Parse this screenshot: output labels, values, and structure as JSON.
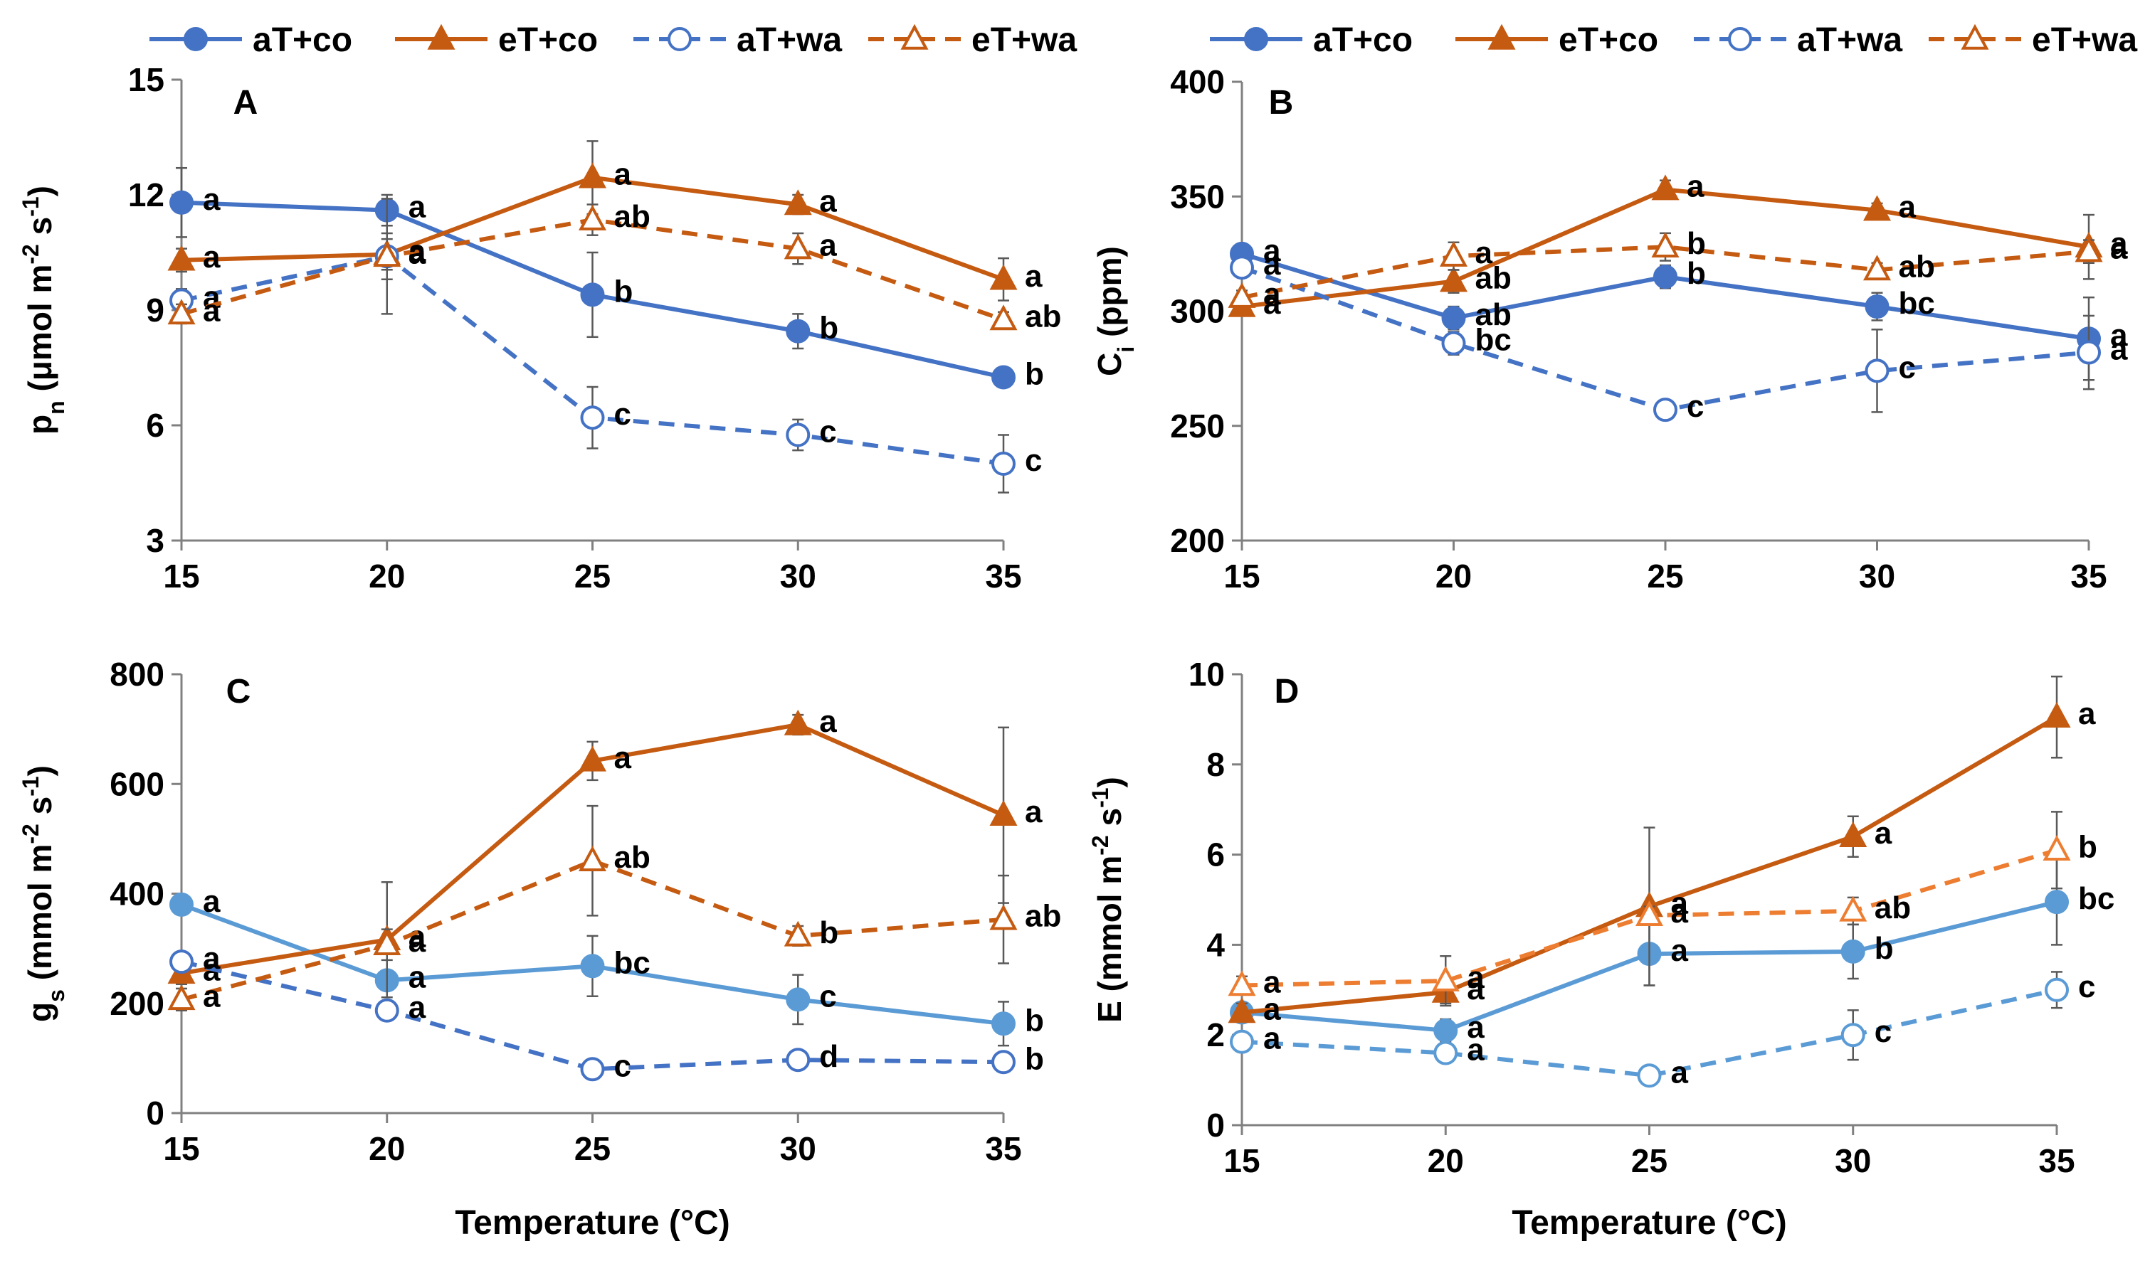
{
  "colors": {
    "blue": "#4472C4",
    "blue_light": "#5B9BD5",
    "orange": "#C55A11",
    "orange_light": "#ED7D31",
    "axis": "#808080",
    "errorbar": "#595959"
  },
  "legend": [
    {
      "label": "aT+co",
      "color_key": "blue",
      "dash": false,
      "marker": "circle",
      "filled": true
    },
    {
      "label": "eT+co",
      "color_key": "orange",
      "dash": false,
      "marker": "triangle",
      "filled": true
    },
    {
      "label": "aT+wa",
      "color_key": "blue",
      "dash": true,
      "marker": "circle",
      "filled": false
    },
    {
      "label": "eT+wa",
      "color_key": "orange",
      "dash": true,
      "marker": "triangle",
      "filled": false
    }
  ],
  "chart_data": [
    {
      "type": "line",
      "panel_letter": "A",
      "title": "",
      "xlabel": "",
      "ylabel": {
        "base": "p",
        "sub": "n",
        "rest": " (μmol m",
        "sup1": "-2",
        "mid": " s",
        "sup2": "-1",
        "end": ")"
      },
      "x": [
        15,
        20,
        25,
        30,
        35
      ],
      "xlim": [
        15,
        35
      ],
      "ylim": [
        3,
        15
      ],
      "yticks": [
        3,
        6,
        9,
        12,
        15
      ],
      "xticks": [
        15,
        20,
        25,
        30,
        35
      ],
      "series": [
        {
          "name": "aT+co",
          "color_key": "blue",
          "dash": false,
          "marker": "circle",
          "filled": true,
          "values": [
            11.8,
            11.6,
            9.4,
            8.45,
            7.25
          ],
          "err": [
            0.9,
            0.4,
            1.1,
            0.45,
            0.25
          ],
          "letters": [
            "a",
            "a",
            "b",
            "b",
            "b"
          ]
        },
        {
          "name": "eT+co",
          "color_key": "orange",
          "dash": false,
          "marker": "triangle",
          "filled": true,
          "values": [
            10.3,
            10.45,
            12.45,
            11.75,
            9.8
          ],
          "err": [
            0.3,
            0.4,
            0.95,
            0.25,
            0.55
          ],
          "letters": [
            "a",
            "a",
            "a",
            "a",
            "a"
          ]
        },
        {
          "name": "aT+wa",
          "color_key": "blue",
          "dash": true,
          "marker": "circle",
          "filled": false,
          "values": [
            9.25,
            10.4,
            6.2,
            5.75,
            5.0
          ],
          "err": [
            0.3,
            1.5,
            0.8,
            0.4,
            0.75
          ],
          "letters": [
            "a",
            "a",
            "c",
            "c",
            "c"
          ]
        },
        {
          "name": "eT+wa",
          "color_key": "orange",
          "dash": true,
          "marker": "triangle",
          "filled": false,
          "values": [
            8.9,
            10.4,
            11.35,
            10.6,
            8.75
          ],
          "err": [
            0.25,
            0.6,
            0.4,
            0.4,
            0.2
          ],
          "letters": [
            "a",
            "a",
            "ab",
            "a",
            "ab"
          ]
        }
      ]
    },
    {
      "type": "line",
      "panel_letter": "B",
      "title": "",
      "xlabel": "",
      "ylabel": {
        "base": "C",
        "sub": "i",
        "rest": " (ppm)",
        "sup1": "",
        "mid": "",
        "sup2": "",
        "end": ""
      },
      "x": [
        15,
        20,
        25,
        30,
        35
      ],
      "xlim": [
        15,
        35
      ],
      "ylim": [
        200,
        400
      ],
      "yticks": [
        200,
        250,
        300,
        350,
        400
      ],
      "xticks": [
        15,
        20,
        25,
        30,
        35
      ],
      "series": [
        {
          "name": "aT+co",
          "color_key": "blue",
          "dash": false,
          "marker": "circle",
          "filled": true,
          "values": [
            325,
            297,
            315,
            302,
            288
          ],
          "err": [
            4,
            5,
            5,
            6,
            18
          ],
          "letters": [
            "a",
            "ab",
            "b",
            "bc",
            "a"
          ]
        },
        {
          "name": "eT+co",
          "color_key": "orange",
          "dash": false,
          "marker": "triangle",
          "filled": true,
          "values": [
            302,
            313,
            353,
            344,
            328
          ],
          "err": [
            3,
            5,
            4,
            3,
            14
          ],
          "letters": [
            "a",
            "ab",
            "a",
            "a",
            "a"
          ]
        },
        {
          "name": "aT+wa",
          "color_key": "blue",
          "dash": true,
          "marker": "circle",
          "filled": false,
          "values": [
            319,
            286,
            257,
            274,
            282
          ],
          "err": [
            4,
            5,
            3,
            18,
            16
          ],
          "letters": [
            "a",
            "bc",
            "c",
            "c",
            "a"
          ]
        },
        {
          "name": "eT+wa",
          "color_key": "orange",
          "dash": true,
          "marker": "triangle",
          "filled": false,
          "values": [
            306,
            324,
            328,
            318,
            326
          ],
          "err": [
            3,
            6,
            6,
            3,
            5
          ],
          "letters": [
            "a",
            "a",
            "b",
            "ab",
            "a"
          ]
        }
      ]
    },
    {
      "type": "line",
      "panel_letter": "C",
      "title": "",
      "xlabel": "Temperature (°C)",
      "ylabel": {
        "base": "g",
        "sub": "s",
        "rest": " (mmol m",
        "sup1": "-2",
        "mid": " s",
        "sup2": "-1",
        "end": ")"
      },
      "x": [
        15,
        20,
        25,
        30,
        35
      ],
      "xlim": [
        15,
        35
      ],
      "ylim": [
        0,
        800
      ],
      "yticks": [
        0,
        200,
        400,
        600,
        800
      ],
      "xticks": [
        15,
        20,
        25,
        30,
        35
      ],
      "series": [
        {
          "name": "aT+co",
          "color_key": "blue_light",
          "dash": false,
          "marker": "circle",
          "filled": true,
          "values": [
            380,
            242,
            268,
            207,
            163
          ],
          "err": [
            12,
            15,
            55,
            45,
            40
          ],
          "letters": [
            "a",
            "a",
            "bc",
            "c",
            "b"
          ]
        },
        {
          "name": "eT+co",
          "color_key": "orange",
          "dash": false,
          "marker": "triangle",
          "filled": true,
          "values": [
            255,
            316,
            642,
            708,
            543
          ],
          "err": [
            20,
            105,
            35,
            18,
            160
          ],
          "letters": [
            "a",
            "a",
            "a",
            "a",
            "a"
          ]
        },
        {
          "name": "aT+wa",
          "color_key": "blue",
          "dash": true,
          "marker": "circle",
          "filled": false,
          "values": [
            276,
            187,
            80,
            97,
            93
          ],
          "err": [
            10,
            12,
            10,
            10,
            10
          ],
          "letters": [
            "a",
            "a",
            "c",
            "d",
            "b"
          ]
        },
        {
          "name": "eT+wa",
          "color_key": "orange",
          "dash": true,
          "marker": "triangle",
          "filled": false,
          "values": [
            207,
            307,
            460,
            323,
            353
          ],
          "err": [
            20,
            28,
            100,
            18,
            80
          ],
          "letters": [
            "a",
            "a",
            "ab",
            "b",
            "ab"
          ]
        }
      ]
    },
    {
      "type": "line",
      "panel_letter": "D",
      "title": "",
      "xlabel": "Temperature (°C)",
      "ylabel": {
        "base": "E",
        "sub": "",
        "rest": " (mmol m",
        "sup1": "-2",
        "mid": " s",
        "sup2": "-1",
        "end": ")"
      },
      "x": [
        15,
        20,
        25,
        30,
        35
      ],
      "xlim": [
        15,
        35
      ],
      "ylim": [
        0,
        10
      ],
      "yticks": [
        0,
        2,
        4,
        6,
        8,
        10
      ],
      "xticks": [
        15,
        20,
        25,
        30,
        35
      ],
      "series": [
        {
          "name": "aT+co",
          "color_key": "blue_light",
          "dash": false,
          "marker": "circle",
          "filled": true,
          "values": [
            2.5,
            2.1,
            3.8,
            3.85,
            4.95
          ],
          "err": [
            0.2,
            0.25,
            0.7,
            0.6,
            0.95
          ],
          "letters": [
            "a",
            "a",
            "a",
            "b",
            "bc"
          ]
        },
        {
          "name": "eT+co",
          "color_key": "orange",
          "dash": false,
          "marker": "triangle",
          "filled": true,
          "values": [
            2.5,
            2.95,
            4.85,
            6.4,
            9.05
          ],
          "err": [
            0.2,
            0.25,
            1.75,
            0.45,
            0.9
          ],
          "letters": [
            "a",
            "a",
            "a",
            "a",
            "a"
          ]
        },
        {
          "name": "aT+wa",
          "color_key": "blue_light",
          "dash": true,
          "marker": "circle",
          "filled": false,
          "values": [
            1.85,
            1.6,
            1.1,
            2.0,
            3.0
          ],
          "err": [
            0.1,
            0.1,
            0.1,
            0.55,
            0.4
          ],
          "letters": [
            "a",
            "a",
            "a",
            "c",
            "c"
          ]
        },
        {
          "name": "eT+wa",
          "color_key": "orange_light",
          "dash": true,
          "marker": "triangle",
          "filled": false,
          "values": [
            3.1,
            3.2,
            4.65,
            4.75,
            6.1
          ],
          "err": [
            0.2,
            0.55,
            0.2,
            0.3,
            0.85
          ],
          "letters": [
            "a",
            "a",
            "a",
            "ab",
            "b"
          ]
        }
      ]
    }
  ]
}
